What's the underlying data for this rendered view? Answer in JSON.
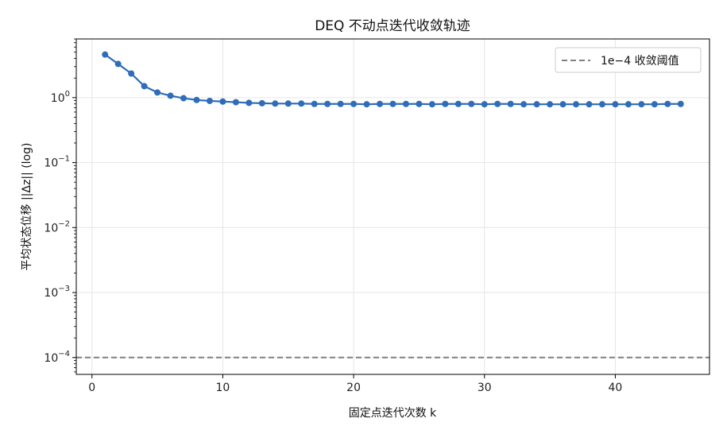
{
  "chart_data": {
    "type": "line",
    "title": "DEQ 不动点迭代收敛轨迹",
    "xlabel": "固定点迭代次数 k",
    "ylabel": "平均状态位移 ||Δz|| (log)",
    "xlim": [
      -1.2,
      47.2
    ],
    "ylim": [
      5.5e-05,
      8.0
    ],
    "yscale": "log",
    "grid": true,
    "legend_position": "top-right",
    "x_ticks": [
      0,
      10,
      20,
      30,
      40
    ],
    "y_ticks": [
      {
        "value": 1,
        "base": "10",
        "exp": "0"
      },
      {
        "value": 0.1,
        "base": "10",
        "exp": "−1"
      },
      {
        "value": 0.01,
        "base": "10",
        "exp": "−2"
      },
      {
        "value": 0.001,
        "base": "10",
        "exp": "−3"
      },
      {
        "value": 0.0001,
        "base": "10",
        "exp": "−4"
      }
    ],
    "series": [
      {
        "color": "#2f6db8",
        "x": [
          1,
          2,
          3,
          4,
          5,
          6,
          7,
          8,
          9,
          10,
          11,
          12,
          13,
          14,
          15,
          16,
          17,
          18,
          19,
          20,
          21,
          22,
          23,
          24,
          25,
          26,
          27,
          28,
          29,
          30,
          31,
          32,
          33,
          34,
          35,
          36,
          37,
          38,
          39,
          40,
          41,
          42,
          43,
          44,
          45
        ],
        "values": [
          4.6,
          3.3,
          2.35,
          1.5,
          1.2,
          1.07,
          0.98,
          0.92,
          0.89,
          0.87,
          0.85,
          0.83,
          0.82,
          0.81,
          0.81,
          0.81,
          0.8,
          0.8,
          0.8,
          0.8,
          0.79,
          0.8,
          0.8,
          0.8,
          0.8,
          0.79,
          0.8,
          0.8,
          0.8,
          0.79,
          0.8,
          0.8,
          0.79,
          0.79,
          0.79,
          0.79,
          0.79,
          0.79,
          0.79,
          0.79,
          0.79,
          0.79,
          0.79,
          0.8,
          0.8
        ]
      }
    ],
    "reference_line": {
      "name": "1e−4 收敛阈值",
      "value": 0.0001,
      "color": "#808080",
      "style": "dashed"
    }
  }
}
